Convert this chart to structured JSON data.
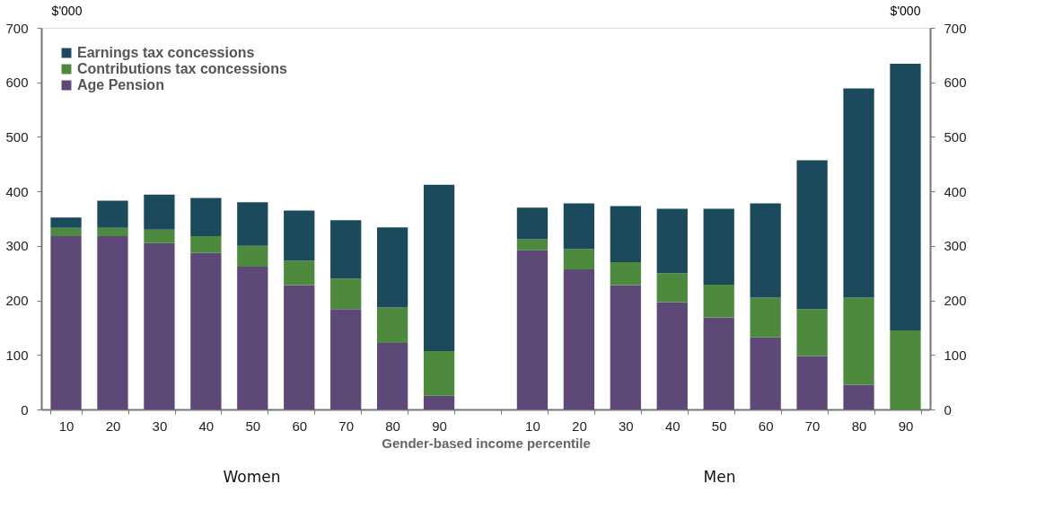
{
  "chart_data": {
    "type": "bar",
    "stacked": true,
    "categories": [
      "10",
      "20",
      "30",
      "40",
      "50",
      "60",
      "70",
      "80",
      "90",
      null,
      "10",
      "20",
      "30",
      "40",
      "50",
      "60",
      "70",
      "80",
      "90"
    ],
    "series": [
      {
        "name": "Age Pension",
        "color": "#5e4878",
        "values": [
          318,
          318,
          305,
          287,
          262,
          228,
          184,
          122,
          25,
          null,
          292,
          257,
          228,
          197,
          169,
          132,
          98,
          45,
          0
        ]
      },
      {
        "name": "Contributions  tax concessions",
        "color": "#4e8a3e",
        "values": [
          15,
          15,
          25,
          31,
          38,
          45,
          56,
          65,
          82,
          null,
          20,
          37,
          42,
          53,
          60,
          73,
          86,
          160,
          145
        ]
      },
      {
        "name": "Earnings  tax concessions",
        "color": "#1a4a5c",
        "values": [
          19,
          50,
          64,
          70,
          80,
          92,
          107,
          147,
          305,
          null,
          58,
          84,
          103,
          118,
          139,
          173,
          273,
          384,
          489
        ]
      }
    ],
    "ylim": [
      0,
      700
    ],
    "yticks": [
      0,
      100,
      200,
      300,
      400,
      500,
      600,
      700
    ],
    "y2lim": [
      0,
      700
    ],
    "y2ticks": [
      0,
      100,
      200,
      300,
      400,
      500,
      600,
      700
    ],
    "ylabel": "$'000",
    "y2label": "$'000",
    "xlabel": "Gender-based income percentile",
    "annotations": [
      "Women",
      "Men"
    ],
    "legend": "top left",
    "grid": false
  }
}
